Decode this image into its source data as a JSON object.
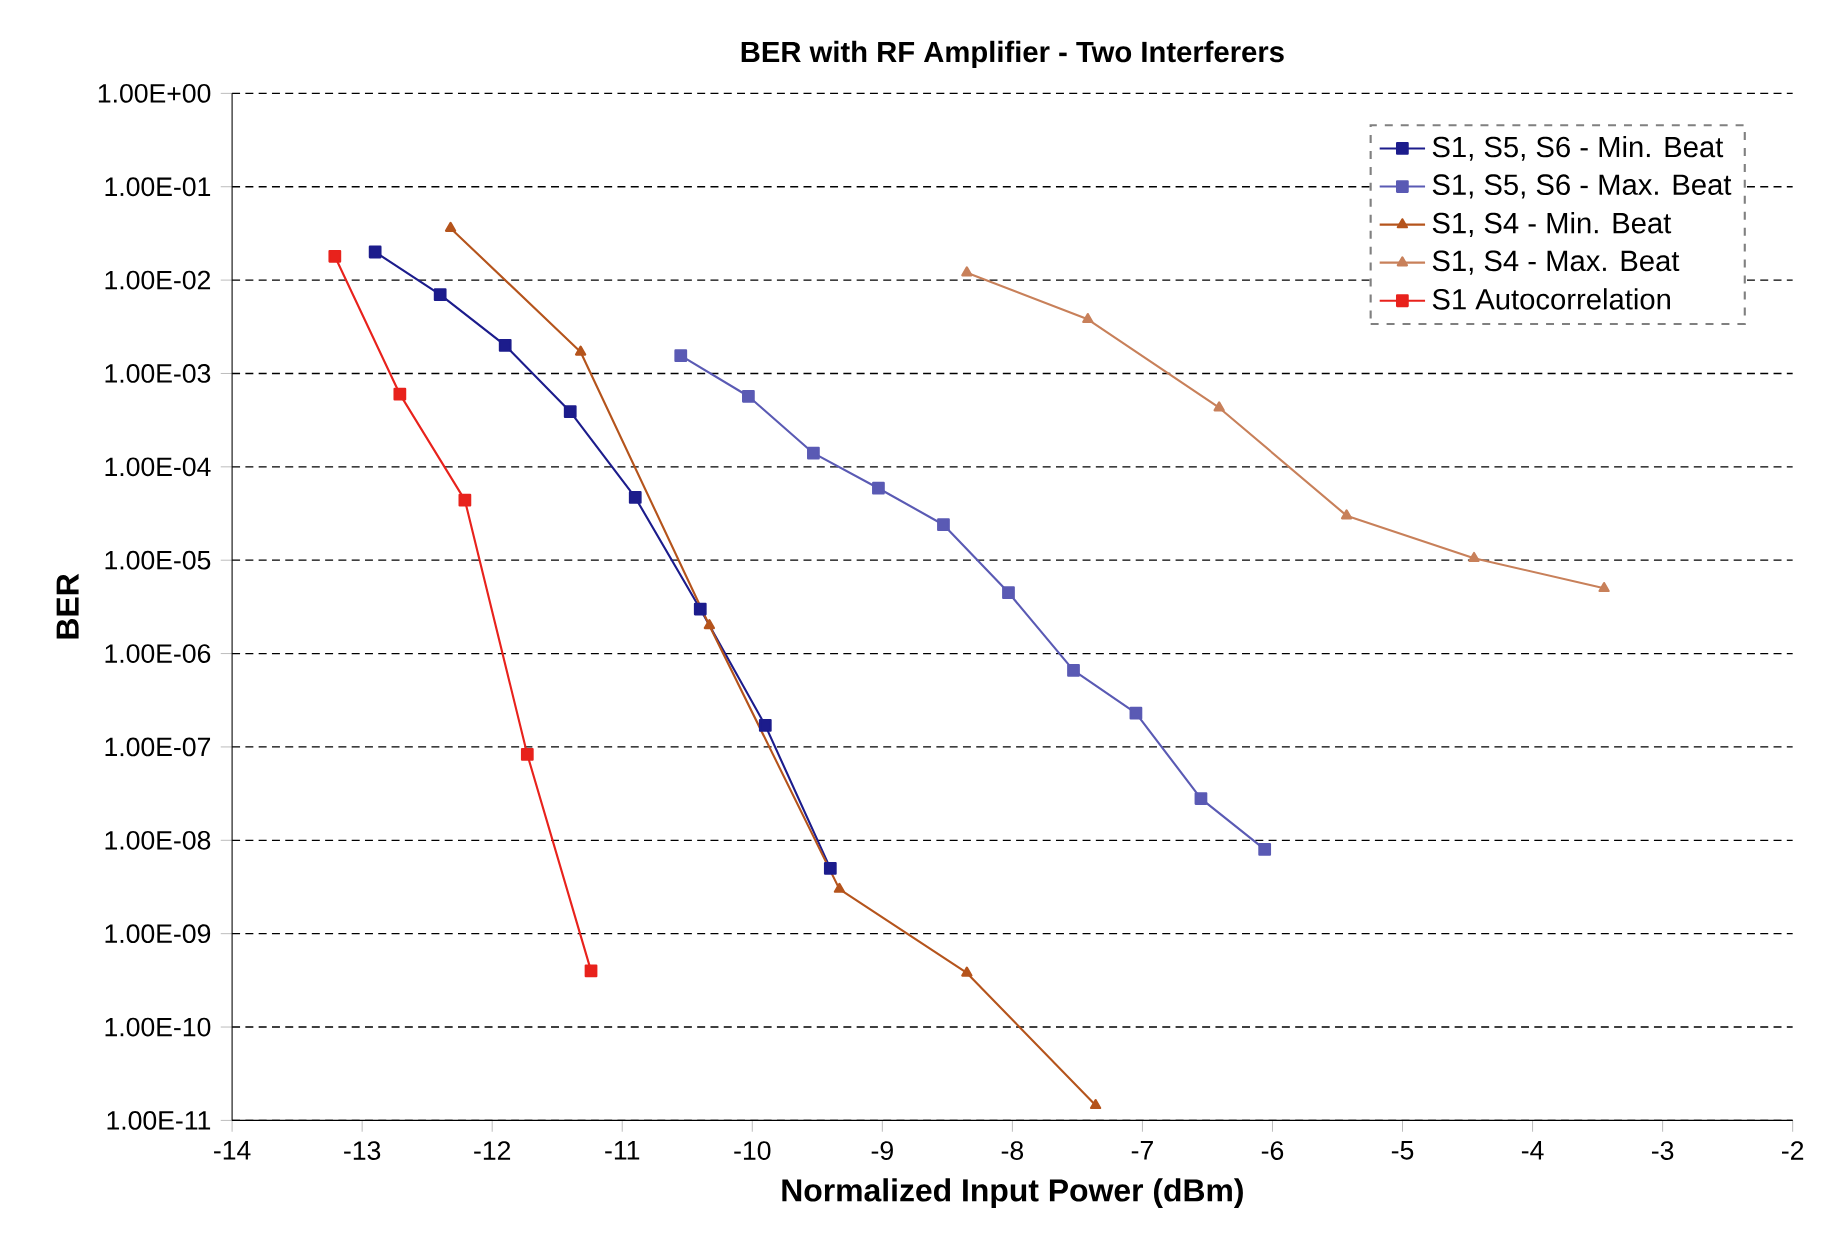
{
  "chart_data": {
    "type": "line",
    "title": "BER with RF Amplifier - Two Interferers",
    "xlabel": "Normalized Input Power (dBm)",
    "ylabel": "BER",
    "log": "y",
    "grid": "y",
    "legend": "top right",
    "line_style": "solid",
    "xlim": [
      -14,
      -2
    ],
    "xticks": [
      -14,
      -13,
      -12,
      -11,
      -10,
      -9,
      -8,
      -7,
      -6,
      -5,
      -4,
      -3,
      -2
    ],
    "ylim": [
      1e-11,
      1
    ],
    "yticks": [
      {
        "value": 1,
        "label": "1.00E+00"
      },
      {
        "value": 0.1,
        "label": "1.00E-01"
      },
      {
        "value": 0.01,
        "label": "1.00E-02"
      },
      {
        "value": 0.001,
        "label": "1.00E-03"
      },
      {
        "value": 0.0001,
        "label": "1.00E-04"
      },
      {
        "value": 1e-05,
        "label": "1.00E-05"
      },
      {
        "value": 1e-06,
        "label": "1.00E-06"
      },
      {
        "value": 1e-07,
        "label": "1.00E-07"
      },
      {
        "value": 1e-08,
        "label": "1.00E-08"
      },
      {
        "value": 1e-09,
        "label": "1.00E-09"
      },
      {
        "value": 1e-10,
        "label": "1.00E-10"
      },
      {
        "value": 1e-11,
        "label": "1.00E-11"
      }
    ],
    "series": [
      {
        "name": "S1, S5, S6 - Min. Beat",
        "color": "#1c1c8c",
        "marker": "square",
        "x": [
          -12.9,
          -12.4,
          -11.9,
          -11.4,
          -10.9,
          -10.4,
          -9.9,
          -9.4
        ],
        "values": [
          0.02,
          0.007,
          0.002,
          0.00039,
          4.7e-05,
          3e-06,
          1.7e-07,
          5e-09
        ]
      },
      {
        "name": "S1, S5, S6 - Max. Beat",
        "color": "#5a5ab4",
        "marker": "square",
        "x": [
          -10.55,
          -10.03,
          -9.53,
          -9.03,
          -8.53,
          -8.03,
          -7.53,
          -7.05,
          -6.55,
          -6.06
        ],
        "values": [
          0.00155,
          0.00057,
          0.00014,
          5.9e-05,
          2.4e-05,
          4.5e-06,
          6.6e-07,
          2.3e-07,
          2.8e-08,
          8e-09
        ]
      },
      {
        "name": "S1, S4 - Min. Beat",
        "color": "#b5541c",
        "marker": "triangle",
        "x": [
          -12.32,
          -11.32,
          -10.33,
          -9.33,
          -8.35,
          -7.36
        ],
        "values": [
          0.036,
          0.0017,
          2e-06,
          3e-09,
          3.8e-10,
          1.45e-11
        ]
      },
      {
        "name": "S1, S4 - Max. Beat",
        "color": "#c8805a",
        "marker": "triangle",
        "x": [
          -8.35,
          -7.42,
          -6.41,
          -5.43,
          -4.45,
          -3.45
        ],
        "values": [
          0.012,
          0.0038,
          0.00043,
          3e-05,
          1.05e-05,
          5e-06
        ]
      },
      {
        "name": "S1 Autocorrelation",
        "color": "#e8221c",
        "marker": "square",
        "x": [
          -13.21,
          -12.71,
          -12.21,
          -11.73,
          -11.24
        ],
        "values": [
          0.018,
          0.0006,
          4.4e-05,
          8.3e-08,
          4e-10
        ]
      }
    ]
  }
}
